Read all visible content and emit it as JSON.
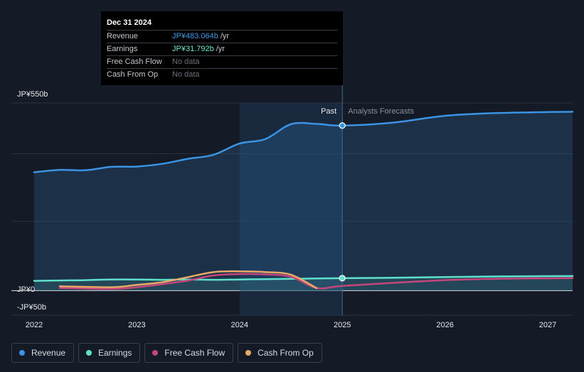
{
  "tooltip": {
    "date": "Dec 31 2024",
    "rows": [
      {
        "label": "Revenue",
        "value": "JP¥483.064b",
        "unit": "/yr"
      },
      {
        "label": "Earnings",
        "value": "JP¥31.792b",
        "unit": "/yr"
      },
      {
        "label": "Free Cash Flow",
        "value": "No data"
      },
      {
        "label": "Cash From Op",
        "value": "No data"
      }
    ]
  },
  "legend": [
    {
      "label": "Revenue",
      "color": "#3b93e4"
    },
    {
      "label": "Earnings",
      "color": "#5fe0cc"
    },
    {
      "label": "Free Cash Flow",
      "color": "#c4467a"
    },
    {
      "label": "Cash From Op",
      "color": "#e8a868"
    }
  ],
  "chart_data": {
    "type": "line",
    "y_ticks": [
      {
        "value": 550,
        "label": "JP¥550b"
      },
      {
        "value": 0,
        "label": "JP¥0"
      },
      {
        "value": -50,
        "label": "-JP¥50b"
      }
    ],
    "x_ticks": [
      2022,
      2023,
      2024,
      2025,
      2026,
      2027
    ],
    "xlim": [
      2022,
      2027.25
    ],
    "ylim": [
      -50,
      550
    ],
    "past_label": "Past",
    "forecast_label": "Analysts Forecasts",
    "divider_x": 2025,
    "highlight_from": 2024,
    "series": [
      {
        "name": "Revenue",
        "color": "#3b93e4",
        "fill": true,
        "points": [
          [
            2022,
            345
          ],
          [
            2022.25,
            352
          ],
          [
            2022.5,
            351
          ],
          [
            2022.75,
            361
          ],
          [
            2023,
            362
          ],
          [
            2023.25,
            370
          ],
          [
            2023.5,
            385
          ],
          [
            2023.75,
            397
          ],
          [
            2024,
            430
          ],
          [
            2024.25,
            443
          ],
          [
            2024.5,
            487
          ],
          [
            2024.75,
            488
          ],
          [
            2025,
            483.064
          ],
          [
            2025.5,
            492
          ],
          [
            2026,
            512
          ],
          [
            2026.5,
            520
          ],
          [
            2027.25,
            524
          ]
        ]
      },
      {
        "name": "Earnings",
        "color": "#5fe0cc",
        "fill": true,
        "points": [
          [
            2022,
            24
          ],
          [
            2022.25,
            25
          ],
          [
            2022.5,
            26
          ],
          [
            2022.75,
            28
          ],
          [
            2023,
            28
          ],
          [
            2023.25,
            27
          ],
          [
            2023.5,
            28
          ],
          [
            2023.75,
            27
          ],
          [
            2024,
            28
          ],
          [
            2024.25,
            29
          ],
          [
            2024.5,
            30
          ],
          [
            2024.75,
            31
          ],
          [
            2025,
            31.792
          ],
          [
            2025.5,
            33
          ],
          [
            2026,
            35
          ],
          [
            2026.5,
            37
          ],
          [
            2027.25,
            38
          ]
        ]
      },
      {
        "name": "Free Cash Flow",
        "color": "#c4467a",
        "fill": false,
        "points": [
          [
            2022.25,
            3
          ],
          [
            2022.75,
            0
          ],
          [
            2023,
            5
          ],
          [
            2023.25,
            14
          ],
          [
            2023.5,
            25
          ],
          [
            2023.75,
            40
          ],
          [
            2024,
            44
          ],
          [
            2024.25,
            43
          ],
          [
            2024.5,
            36
          ],
          [
            2024.75,
            3
          ],
          [
            2025,
            9
          ],
          [
            2025.5,
            18
          ],
          [
            2026,
            26
          ],
          [
            2026.5,
            30
          ],
          [
            2027.25,
            32
          ]
        ]
      },
      {
        "name": "Cash From Op",
        "color": "#e8a868",
        "fill": false,
        "points": [
          [
            2022.25,
            8
          ],
          [
            2022.75,
            5
          ],
          [
            2023,
            12
          ],
          [
            2023.25,
            20
          ],
          [
            2023.5,
            35
          ],
          [
            2023.75,
            50
          ],
          [
            2024,
            52
          ],
          [
            2024.25,
            50
          ],
          [
            2024.5,
            42
          ],
          [
            2024.75,
            2
          ]
        ]
      }
    ]
  }
}
